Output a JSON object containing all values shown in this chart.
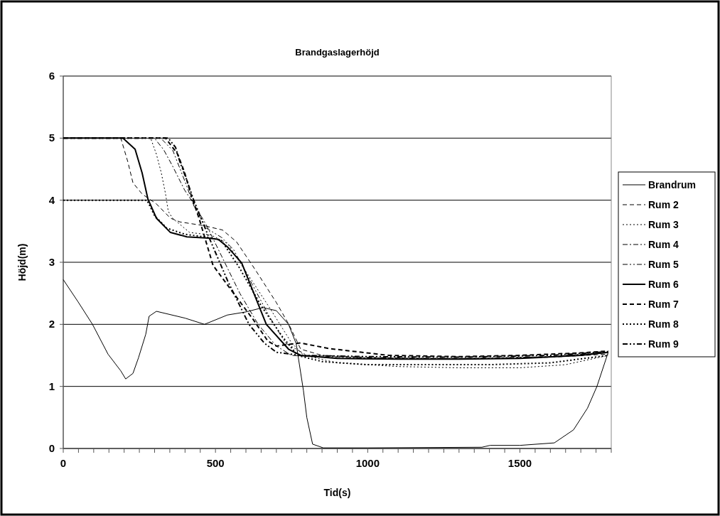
{
  "chart_data": {
    "type": "line",
    "title": "Brandgaslagerhöjd",
    "xlabel": "Tid(s)",
    "ylabel": "Höjd(m)",
    "xlim": [
      0,
      1800
    ],
    "ylim": [
      0,
      6
    ],
    "xticks": [
      0,
      {
        "value": 50,
        "label": null
      },
      {
        "value": 100,
        "label": null
      },
      {
        "value": 150,
        "label": null
      },
      {
        "value": 200,
        "label": null
      },
      {
        "value": 250,
        "label": null
      },
      {
        "value": 300,
        "label": null
      },
      {
        "value": 350,
        "label": null
      },
      {
        "value": 400,
        "label": null
      },
      {
        "value": 450,
        "label": null
      },
      500,
      {
        "value": 550,
        "label": null
      },
      {
        "value": 600,
        "label": null
      },
      {
        "value": 650,
        "label": null
      },
      {
        "value": 700,
        "label": null
      },
      {
        "value": 750,
        "label": null
      },
      {
        "value": 800,
        "label": null
      },
      {
        "value": 850,
        "label": null
      },
      {
        "value": 900,
        "label": null
      },
      {
        "value": 950,
        "label": null
      },
      1000,
      {
        "value": 1050,
        "label": null
      },
      {
        "value": 1100,
        "label": null
      },
      {
        "value": 1150,
        "label": null
      },
      {
        "value": 1200,
        "label": null
      },
      {
        "value": 1250,
        "label": null
      },
      {
        "value": 1300,
        "label": null
      },
      {
        "value": 1350,
        "label": null
      },
      {
        "value": 1400,
        "label": null
      },
      {
        "value": 1450,
        "label": null
      },
      1500,
      {
        "value": 1550,
        "label": null
      },
      {
        "value": 1600,
        "label": null
      },
      {
        "value": 1650,
        "label": null
      },
      {
        "value": 1700,
        "label": null
      },
      {
        "value": 1750,
        "label": null
      },
      {
        "value": 1800,
        "label": null
      }
    ],
    "yticks": [
      0,
      1,
      2,
      3,
      4,
      5,
      6
    ],
    "grid": "y",
    "legend": "right",
    "series": [
      {
        "name": "Brandrum",
        "color": "#000000",
        "line_style": "solid",
        "x": [
          0,
          49,
          96,
          147,
          189,
          205,
          229,
          247,
          271,
          282,
          306,
          400,
          464,
          539,
          600,
          656,
          700,
          740,
          765,
          789,
          800,
          819,
          854,
          1000,
          1375,
          1402,
          1500,
          1613,
          1676,
          1722,
          1753,
          1790
        ],
        "values": [
          2.72,
          2.36,
          2.0,
          1.52,
          1.25,
          1.12,
          1.21,
          1.46,
          1.84,
          2.13,
          2.21,
          2.1,
          2.0,
          2.15,
          2.2,
          2.27,
          2.22,
          2.0,
          1.69,
          0.93,
          0.5,
          0.07,
          0.01,
          0.01,
          0.02,
          0.05,
          0.05,
          0.09,
          0.3,
          0.65,
          1.0,
          1.55
        ]
      },
      {
        "name": "Rum 2",
        "color": "#000000",
        "line_style": "dashed",
        "x": [
          0,
          189,
          212,
          229,
          259,
          306,
          352,
          383,
          462,
          523,
          569,
          632,
          700,
          742,
          780,
          850,
          1000,
          1200,
          1400,
          1600,
          1790
        ],
        "values": [
          5,
          5,
          4.62,
          4.28,
          4.1,
          3.94,
          3.71,
          3.65,
          3.59,
          3.52,
          3.33,
          2.87,
          2.35,
          1.99,
          1.6,
          1.5,
          1.47,
          1.45,
          1.45,
          1.47,
          1.52
        ]
      },
      {
        "name": "Rum 3",
        "color": "#000000",
        "line_style": "dotted",
        "x": [
          0,
          287,
          306,
          322,
          336,
          345,
          359,
          415,
          485,
          540,
          600,
          680,
          750,
          790,
          900,
          1100,
          1300,
          1500,
          1650,
          1790
        ],
        "values": [
          5,
          5,
          4.74,
          4.44,
          4.1,
          3.82,
          3.71,
          3.48,
          3.44,
          3.3,
          2.85,
          2.25,
          1.7,
          1.5,
          1.38,
          1.32,
          1.3,
          1.3,
          1.35,
          1.5
        ]
      },
      {
        "name": "Rum 4",
        "color": "#000000",
        "line_style": "dashdot",
        "x": [
          0,
          299,
          329,
          359,
          399,
          429,
          470,
          520,
          580,
          640,
          700,
          750,
          850,
          1100,
          1400,
          1600,
          1790
        ],
        "values": [
          5,
          5,
          4.82,
          4.55,
          4.16,
          3.94,
          3.6,
          3.1,
          2.5,
          2.0,
          1.65,
          1.5,
          1.47,
          1.45,
          1.45,
          1.48,
          1.55
        ]
      },
      {
        "name": "Rum 5",
        "color": "#000000",
        "line_style": "dashdotdot",
        "x": [
          0,
          320,
          360,
          400,
          430,
          470,
          520,
          560,
          620,
          680,
          730,
          800,
          1000,
          1300,
          1600,
          1790
        ],
        "values": [
          5,
          5,
          4.8,
          4.3,
          3.9,
          3.55,
          3.4,
          3.2,
          2.65,
          2.1,
          1.7,
          1.5,
          1.46,
          1.45,
          1.48,
          1.55
        ]
      },
      {
        "name": "Rum 6",
        "color": "#000000",
        "line_style": "solid",
        "x": [
          0,
          196,
          236,
          259,
          278,
          306,
          352,
          406,
          476,
          509,
          539,
          586,
          667,
          740,
          780,
          900,
          1100,
          1300,
          1500,
          1700,
          1790
        ],
        "values": [
          5,
          5,
          4.82,
          4.44,
          4.02,
          3.71,
          3.48,
          3.41,
          3.39,
          3.37,
          3.25,
          2.99,
          2.0,
          1.6,
          1.5,
          1.45,
          1.44,
          1.44,
          1.45,
          1.5,
          1.55
        ]
      },
      {
        "name": "Rum 7",
        "color": "#000000",
        "line_style": "dashed",
        "x": [
          0,
          336,
          376,
          399,
          422,
          446,
          469,
          492,
          555,
          625,
          672,
          700,
          779,
          873,
          1069,
          1300,
          1500,
          1700,
          1790
        ],
        "values": [
          5,
          5,
          4.74,
          4.44,
          4.05,
          3.71,
          3.33,
          2.95,
          2.53,
          2.07,
          1.73,
          1.65,
          1.7,
          1.61,
          1.5,
          1.48,
          1.5,
          1.54,
          1.57
        ]
      },
      {
        "name": "Rum 8",
        "color": "#000000",
        "line_style": "dotted",
        "x": [
          0,
          275,
          300,
          340,
          400,
          480,
          520,
          580,
          650,
          720,
          770,
          850,
          1000,
          1400,
          1600,
          1790
        ],
        "values": [
          4,
          4,
          3.75,
          3.55,
          3.45,
          3.4,
          3.35,
          2.9,
          2.3,
          1.8,
          1.5,
          1.4,
          1.35,
          1.35,
          1.38,
          1.5
        ]
      },
      {
        "name": "Rum 9",
        "color": "#000000",
        "line_style": "dashdotdot",
        "x": [
          0,
          345,
          369,
          383,
          406,
          427,
          470,
          540,
          610,
          660,
          700,
          780,
          1000,
          1300,
          1600,
          1790
        ],
        "values": [
          5,
          5,
          4.85,
          4.62,
          4.32,
          4.02,
          3.5,
          2.7,
          2.0,
          1.7,
          1.55,
          1.5,
          1.48,
          1.47,
          1.5,
          1.56
        ]
      }
    ]
  }
}
